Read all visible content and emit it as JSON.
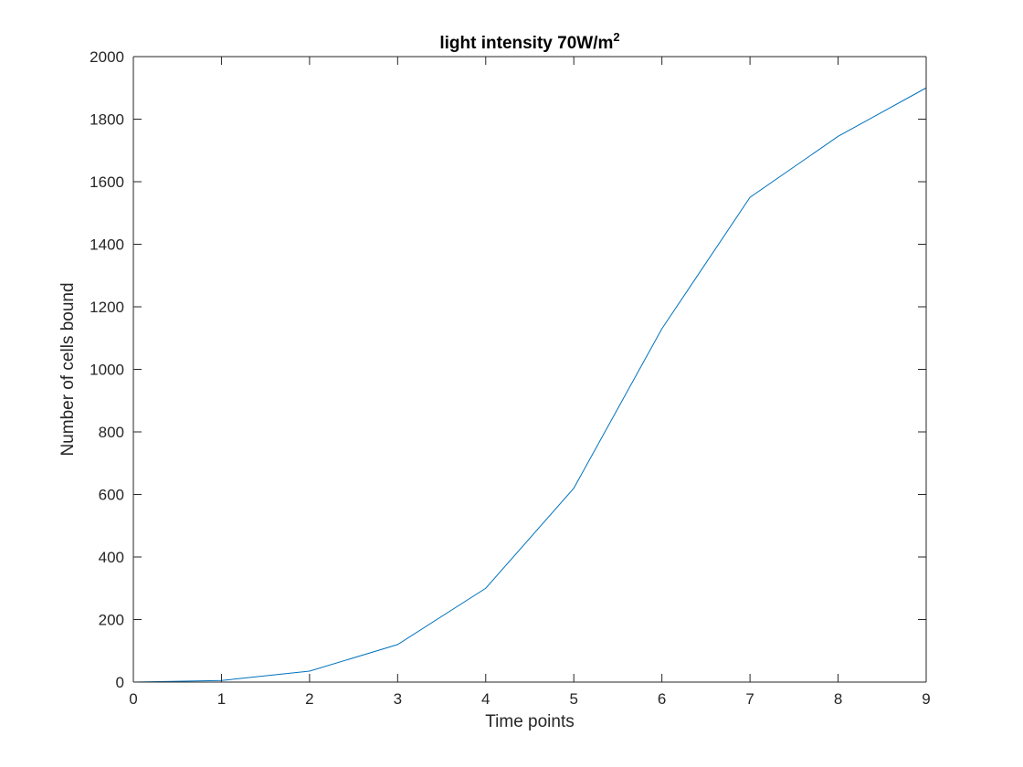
{
  "chart_data": {
    "type": "line",
    "title": {
      "main": "light intensity 70W/m",
      "superscript": "2"
    },
    "xlabel": "Time points",
    "ylabel": "Number of cells bound",
    "x": [
      0,
      1,
      2,
      3,
      4,
      5,
      6,
      7,
      8,
      9
    ],
    "series": [
      {
        "values": [
          0,
          5,
          35,
          120,
          300,
          620,
          1130,
          1550,
          1745,
          1900
        ]
      }
    ],
    "xlim": [
      0,
      9
    ],
    "ylim": [
      0,
      2000
    ],
    "xticks": [
      0,
      1,
      2,
      3,
      4,
      5,
      6,
      7,
      8,
      9
    ],
    "yticks": [
      0,
      200,
      400,
      600,
      800,
      1000,
      1200,
      1400,
      1600,
      1800,
      2000
    ],
    "line_color": "#0072BD",
    "axis_color": "#262626",
    "grid": false,
    "legend": "none",
    "box": true
  }
}
